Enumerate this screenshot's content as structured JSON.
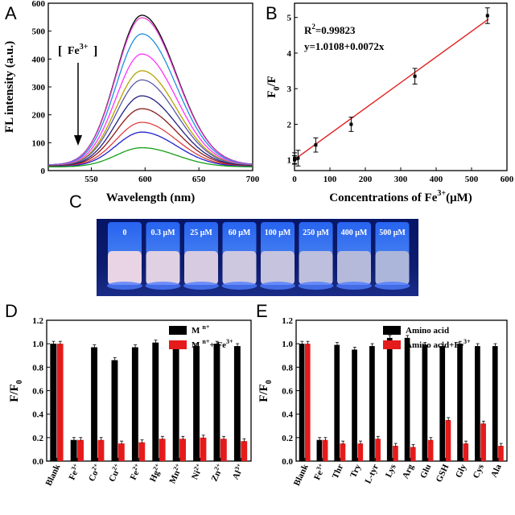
{
  "panels": {
    "A": "A",
    "B": "B",
    "C": "C",
    "D": "D",
    "E": "E"
  },
  "chart_data": [
    {
      "panel": "A",
      "type": "line",
      "xlabel": "Wavelength (nm)",
      "ylabel": "FL intensity (a.u.)",
      "xlim": [
        510,
        700
      ],
      "ylim": [
        0,
        600
      ],
      "xticks": [
        "550",
        "600",
        "650",
        "700"
      ],
      "yticks": [
        "0",
        "100",
        "200",
        "300",
        "400",
        "500",
        "600"
      ],
      "annotation": "Fe3+",
      "colors": [
        "#000000",
        "#e23fd0",
        "#1e8fe0",
        "#ff33ff",
        "#b8a200",
        "#5a5aa8",
        "#202080",
        "#8b1a1a",
        "#e04040",
        "#2020d0",
        "#16a016"
      ],
      "series": [
        {
          "peak_x": 597,
          "peak_y": 557
        },
        {
          "peak_x": 597,
          "peak_y": 548
        },
        {
          "peak_x": 597,
          "peak_y": 490
        },
        {
          "peak_x": 597,
          "peak_y": 418
        },
        {
          "peak_x": 597,
          "peak_y": 358
        },
        {
          "peak_x": 597,
          "peak_y": 325
        },
        {
          "peak_x": 597,
          "peak_y": 268
        },
        {
          "peak_x": 597,
          "peak_y": 222
        },
        {
          "peak_x": 597,
          "peak_y": 173
        },
        {
          "peak_x": 597,
          "peak_y": 138
        },
        {
          "peak_x": 597,
          "peak_y": 82
        }
      ]
    },
    {
      "panel": "B",
      "type": "scatter",
      "xlabel_main": "Concentrations of Fe",
      "xlabel_sup": "3+",
      "xlabel_tail": "(μM)",
      "ylabel": "F",
      "ylabel_sub1": "0",
      "ylabel_tail": "/F",
      "xlim": [
        0,
        600
      ],
      "ylim": [
        0.7,
        5.4
      ],
      "xticks": [
        "0",
        "100",
        "200",
        "300",
        "400",
        "500",
        "600"
      ],
      "yticks": [
        "1",
        "2",
        "3",
        "4",
        "5"
      ],
      "r2_label": "R",
      "r2_sup": "2",
      "r2_value": "=0.99823",
      "equation": "y=1.0108+0.0072x",
      "line_color": "#e02020",
      "points": [
        {
          "x": 0,
          "y": 1.0,
          "err": 0.12
        },
        {
          "x": 0.3,
          "y": 1.05,
          "err": 0.15
        },
        {
          "x": 10,
          "y": 1.05,
          "err": 0.22
        },
        {
          "x": 60,
          "y": 1.42,
          "err": 0.2
        },
        {
          "x": 160,
          "y": 2.0,
          "err": 0.2
        },
        {
          "x": 340,
          "y": 3.35,
          "err": 0.22
        },
        {
          "x": 545,
          "y": 5.05,
          "err": 0.22
        }
      ],
      "fit": {
        "intercept": 1.0108,
        "slope": 0.0072
      }
    },
    {
      "panel": "D",
      "type": "bar",
      "ylabel": "F/F",
      "ylabel_sub": "0",
      "ylim": [
        0,
        1.2
      ],
      "yticks": [
        "0.0",
        "0.2",
        "0.4",
        "0.6",
        "0.8",
        "1.0",
        "1.2"
      ],
      "categories": [
        {
          "name": "Blank",
          "sup": ""
        },
        {
          "name": "Fe",
          "sup": "3+"
        },
        {
          "name": "Co",
          "sup": "2+"
        },
        {
          "name": "Cu",
          "sup": "2+"
        },
        {
          "name": "Fe",
          "sup": "2+"
        },
        {
          "name": "Hg",
          "sup": "2+"
        },
        {
          "name": "Mn",
          "sup": "2+"
        },
        {
          "name": "Ni",
          "sup": "2+"
        },
        {
          "name": "Zn",
          "sup": "2+"
        },
        {
          "name": "Al",
          "sup": "3+"
        }
      ],
      "series": [
        {
          "name": "M",
          "sup": "n+",
          "tail": "",
          "color": "#000000",
          "values": [
            1.0,
            0.18,
            0.97,
            0.86,
            0.97,
            1.01,
            1.0,
            0.98,
            1.0,
            0.98
          ]
        },
        {
          "name": "M",
          "sup": "n+",
          "tail": "+ Fe",
          "sup2": "3+",
          "color": "#e51b1b",
          "values": [
            1.0,
            0.18,
            0.18,
            0.15,
            0.16,
            0.19,
            0.19,
            0.2,
            0.19,
            0.17
          ]
        }
      ]
    },
    {
      "panel": "E",
      "type": "bar",
      "ylabel": "F/F",
      "ylabel_sub": "0",
      "ylim": [
        0,
        1.2
      ],
      "yticks": [
        "0.0",
        "0.2",
        "0.4",
        "0.6",
        "0.8",
        "1.0",
        "1.2"
      ],
      "categories": [
        {
          "name": "Blank",
          "sup": ""
        },
        {
          "name": "Fe",
          "sup": "3+"
        },
        {
          "name": "Thr",
          "sup": ""
        },
        {
          "name": "Try",
          "sup": ""
        },
        {
          "name": "L-tyr",
          "sup": ""
        },
        {
          "name": "Lys",
          "sup": ""
        },
        {
          "name": "Arg",
          "sup": ""
        },
        {
          "name": "Glu",
          "sup": ""
        },
        {
          "name": "GSH",
          "sup": ""
        },
        {
          "name": "Gly",
          "sup": ""
        },
        {
          "name": "Cys",
          "sup": ""
        },
        {
          "name": "Ala",
          "sup": ""
        }
      ],
      "series": [
        {
          "name": "Amino acid",
          "sup": "",
          "tail": "",
          "color": "#000000",
          "values": [
            1.0,
            0.18,
            0.99,
            0.95,
            0.98,
            1.05,
            1.05,
            0.99,
            0.98,
            1.0,
            0.98,
            0.98
          ]
        },
        {
          "name": "Amino acid+Fe",
          "sup": "3+",
          "tail": "",
          "color": "#e51b1b",
          "values": [
            1.0,
            0.18,
            0.15,
            0.15,
            0.19,
            0.13,
            0.12,
            0.18,
            0.35,
            0.15,
            0.32,
            0.13
          ]
        }
      ]
    }
  ],
  "photo": {
    "labels": [
      "0",
      "0.3 μM",
      "25 μM",
      "60 μM",
      "100 μM",
      "250 μM",
      "400 μM",
      "500 μM"
    ],
    "background": "#0c1c6e",
    "glow": "#5f86ff"
  }
}
